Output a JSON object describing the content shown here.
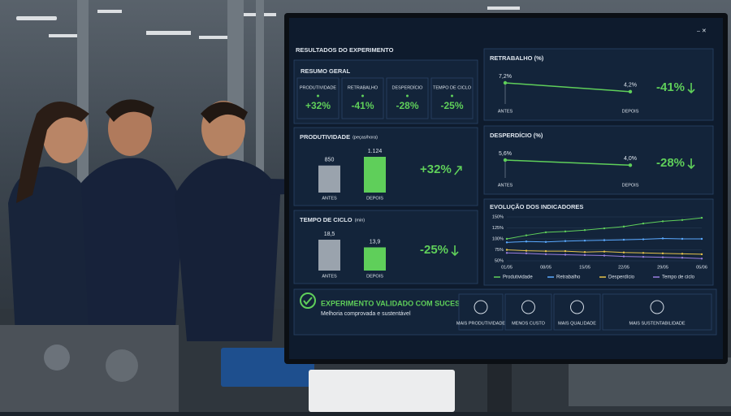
{
  "title": "RESULTADOS DO EXPERIMENTO",
  "summary": {
    "title": "RESUMO GERAL",
    "items": [
      {
        "label": "PRODUTIVIDADE",
        "value": "+32%"
      },
      {
        "label": "RETRABALHO",
        "value": "-41%"
      },
      {
        "label": "DESPERDÍCIO",
        "value": "-28%"
      },
      {
        "label": "TEMPO DE CICLO",
        "value": "-25%"
      }
    ]
  },
  "chart_data": [
    {
      "type": "bar",
      "title": "PRODUTIVIDADE",
      "unit": "(peças/hora)",
      "categories": [
        "ANTES",
        "DEPOIS"
      ],
      "values": [
        850,
        1124
      ],
      "value_labels": [
        "850",
        "1.124"
      ],
      "colors": [
        "#9aa3ad",
        "#5fcf5a"
      ],
      "annotation": "+32%"
    },
    {
      "type": "bar",
      "title": "TEMPO DE CICLO",
      "unit": "(min)",
      "categories": [
        "ANTES",
        "DEPOIS"
      ],
      "values": [
        18.5,
        13.9
      ],
      "value_labels": [
        "18,5",
        "13,9"
      ],
      "colors": [
        "#9aa3ad",
        "#5fcf5a"
      ],
      "annotation": "-25%"
    },
    {
      "type": "line",
      "title": "RETRABALHO (%)",
      "categories": [
        "ANTES",
        "DEPOIS"
      ],
      "values": [
        7.2,
        4.2
      ],
      "value_labels": [
        "7,2%",
        "4,2%"
      ],
      "color": "#5fcf5a",
      "annotation": "-41%"
    },
    {
      "type": "line",
      "title": "DESPERDÍCIO (%)",
      "categories": [
        "ANTES",
        "DEPOIS"
      ],
      "values": [
        5.6,
        4.0
      ],
      "value_labels": [
        "5,6%",
        "4,0%"
      ],
      "color": "#5fcf5a",
      "annotation": "-28%"
    },
    {
      "type": "multiline",
      "title": "EVOLUÇÃO DOS INDICADORES",
      "categories": [
        "01/05",
        null,
        "08/05",
        null,
        "15/05",
        null,
        "22/05",
        null,
        "29/05",
        null,
        "05/06"
      ],
      "ylim": [
        50,
        150
      ],
      "yticks": [
        {
          "value": 50,
          "label": "50%"
        },
        {
          "value": 75,
          "label": "75%"
        },
        {
          "value": 100,
          "label": "100%"
        },
        {
          "value": 125,
          "label": "125%"
        },
        {
          "value": 150,
          "label": "150%"
        }
      ],
      "series": [
        {
          "name": "Produtividade",
          "color": "#5fcf5a",
          "values": [
            100,
            108,
            115,
            117,
            120,
            124,
            128,
            135,
            140,
            143,
            148
          ]
        },
        {
          "name": "Retrabalho",
          "color": "#5aa9ff",
          "values": [
            92,
            94,
            93,
            95,
            96,
            97,
            98,
            99,
            101,
            100,
            100
          ]
        },
        {
          "name": "Desperdício",
          "color": "#e6c34a",
          "values": [
            75,
            73,
            72,
            72,
            70,
            71,
            69,
            68,
            67,
            66,
            65
          ]
        },
        {
          "name": "Tempo de ciclo",
          "color": "#9b7fe0",
          "values": [
            68,
            67,
            65,
            64,
            63,
            62,
            60,
            59,
            58,
            57,
            55
          ]
        }
      ]
    }
  ],
  "banner": {
    "title": "EXPERIMENTO VALIDADO COM SUCESSO",
    "subtitle": "Melhoria comprovada e sustentável",
    "badges": [
      "MAIS PRODUTIVIDADE",
      "MENOS CUSTO",
      "MAIS QUALIDADE",
      "MAIS SUSTENTABILIDADE"
    ]
  }
}
